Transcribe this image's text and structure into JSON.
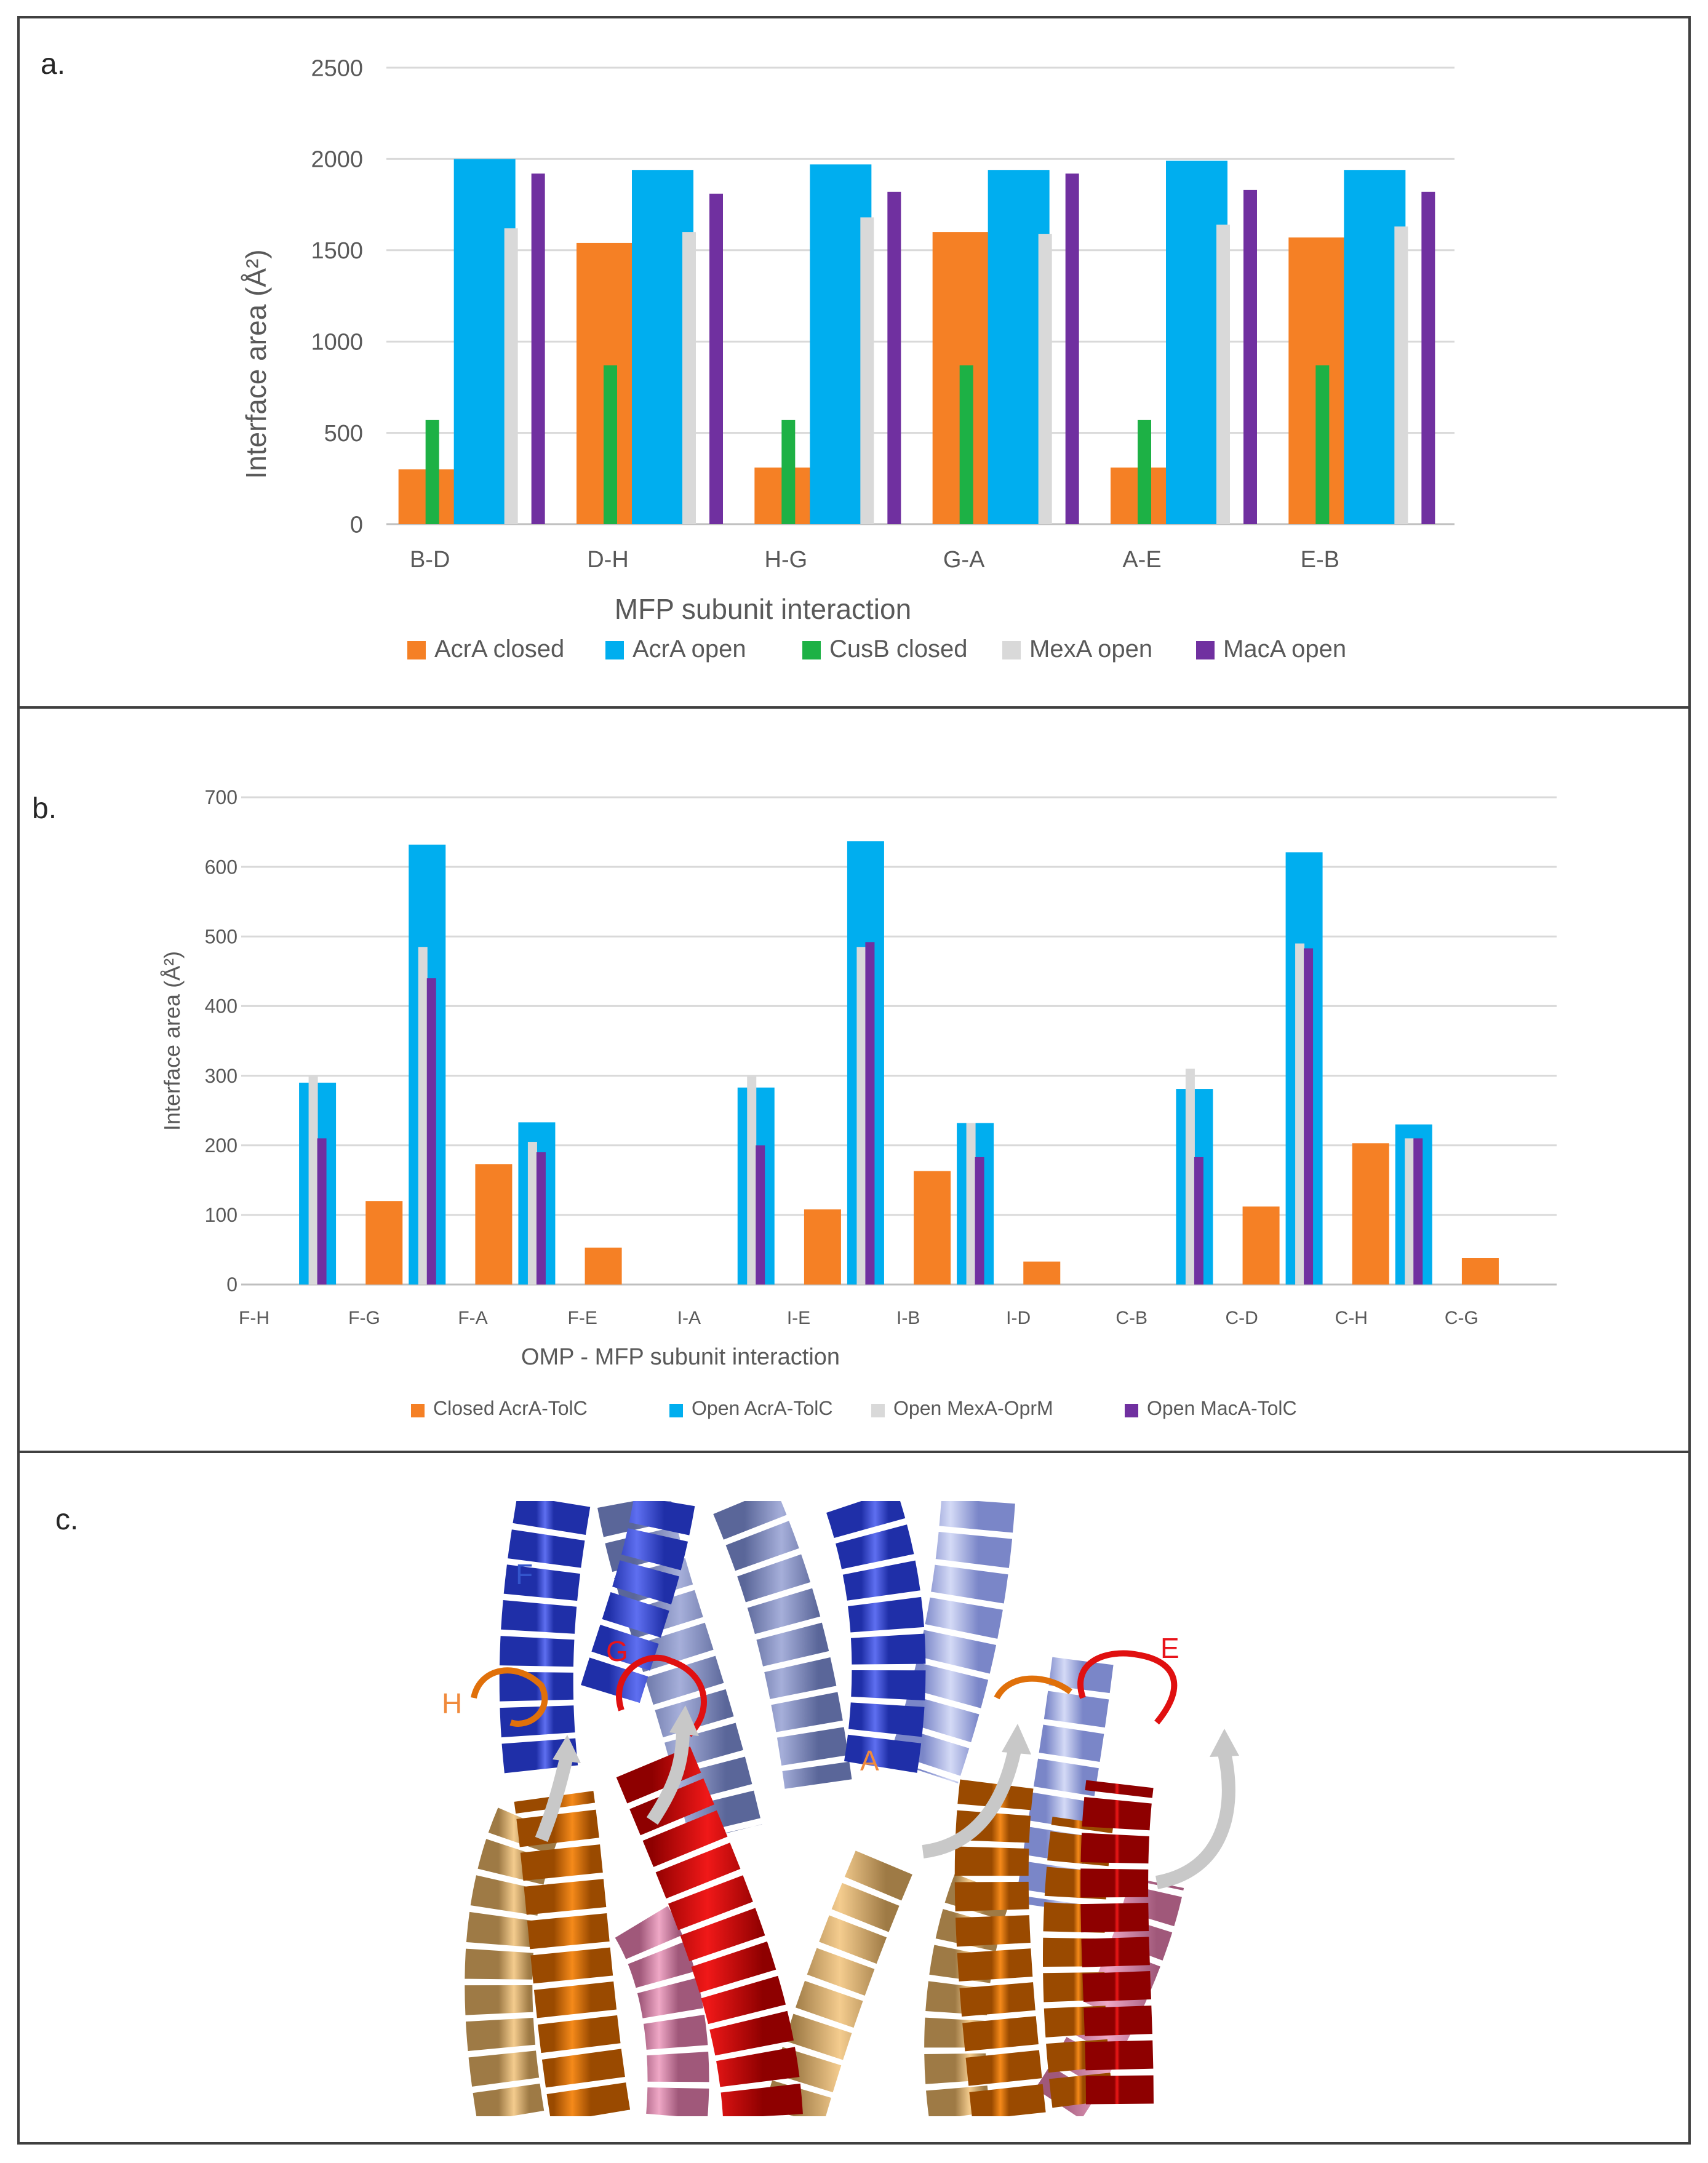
{
  "colors": {
    "acra_closed": "#F58025",
    "acra_open": "#00AEEF",
    "cusb_closed": "#1DB145",
    "mexa_open": "#D9D9D9",
    "maca_open": "#7030A0",
    "grid": "#D9D9D9",
    "text": "#595959",
    "border": "#404040"
  },
  "chart_data": [
    {
      "id": "a",
      "panel_label": "a.",
      "type": "bar",
      "title": "",
      "xlabel": "MFP subunit interaction",
      "ylabel": "Interface area (Å²)",
      "ylim": [
        0,
        2500
      ],
      "yticks": [
        0,
        500,
        1000,
        1500,
        2000,
        2500
      ],
      "grid": true,
      "legend_position": "bottom",
      "categories": [
        "B-D",
        "D-H",
        "H-G",
        "G-A",
        "A-E",
        "E-B"
      ],
      "series": [
        {
          "name": "AcrA closed",
          "color_key": "acra_closed",
          "style": "wide-back",
          "values": [
            300,
            1540,
            310,
            1600,
            310,
            1570
          ]
        },
        {
          "name": "AcrA open",
          "color_key": "acra_open",
          "style": "wide-back",
          "values": [
            2000,
            1940,
            1970,
            1940,
            1990,
            1940
          ]
        },
        {
          "name": "CusB closed",
          "color_key": "cusb_closed",
          "style": "narrow-front",
          "values": [
            570,
            870,
            570,
            870,
            570,
            870
          ]
        },
        {
          "name": "MexA open",
          "color_key": "mexa_open",
          "style": "narrow-front",
          "values": [
            1620,
            1600,
            1680,
            1590,
            1640,
            1630
          ]
        },
        {
          "name": "MacA open",
          "color_key": "maca_open",
          "style": "narrow-front",
          "values": [
            1920,
            1810,
            1820,
            1920,
            1830,
            1820
          ]
        }
      ]
    },
    {
      "id": "b",
      "panel_label": "b.",
      "type": "bar",
      "title": "",
      "xlabel": "OMP - MFP subunit interaction",
      "ylabel": "Interface area (Å²)",
      "ylim": [
        0,
        700
      ],
      "yticks": [
        0,
        100,
        200,
        300,
        400,
        500,
        600,
        700
      ],
      "grid": true,
      "legend_position": "bottom",
      "categories": [
        "F-H",
        "F-G",
        "F-A",
        "F-E",
        "I-A",
        "I-E",
        "I-B",
        "I-D",
        "C-B",
        "C-D",
        "C-H",
        "C-G"
      ],
      "series": [
        {
          "name": "Closed AcrA-TolC",
          "color_key": "acra_closed",
          "style": "wide-back",
          "values": [
            0,
            120,
            173,
            53,
            0,
            108,
            163,
            33,
            0,
            112,
            203,
            38
          ]
        },
        {
          "name": "Open AcrA-TolC",
          "color_key": "acra_open",
          "style": "wide-back",
          "values": [
            290,
            632,
            233,
            0,
            283,
            637,
            232,
            0,
            281,
            621,
            230,
            0
          ]
        },
        {
          "name": "Open MexA-OprM",
          "color_key": "mexa_open",
          "style": "narrow-front",
          "values": [
            300,
            485,
            205,
            0,
            300,
            485,
            232,
            0,
            310,
            490,
            210,
            0
          ]
        },
        {
          "name": "Open MacA-TolC",
          "color_key": "maca_open",
          "style": "narrow-front",
          "values": [
            210,
            440,
            190,
            0,
            200,
            492,
            183,
            0,
            183,
            483,
            210,
            0
          ]
        }
      ]
    }
  ],
  "figure_c": {
    "panel_label": "c.",
    "chain_labels": [
      {
        "text": "F",
        "color": "#3355CC"
      },
      {
        "text": "G",
        "color": "#E8141B"
      },
      {
        "text": "H",
        "color": "#F08A3C"
      },
      {
        "text": "A",
        "color": "#F08A3C"
      },
      {
        "text": "E",
        "color": "#E8141B"
      }
    ]
  }
}
